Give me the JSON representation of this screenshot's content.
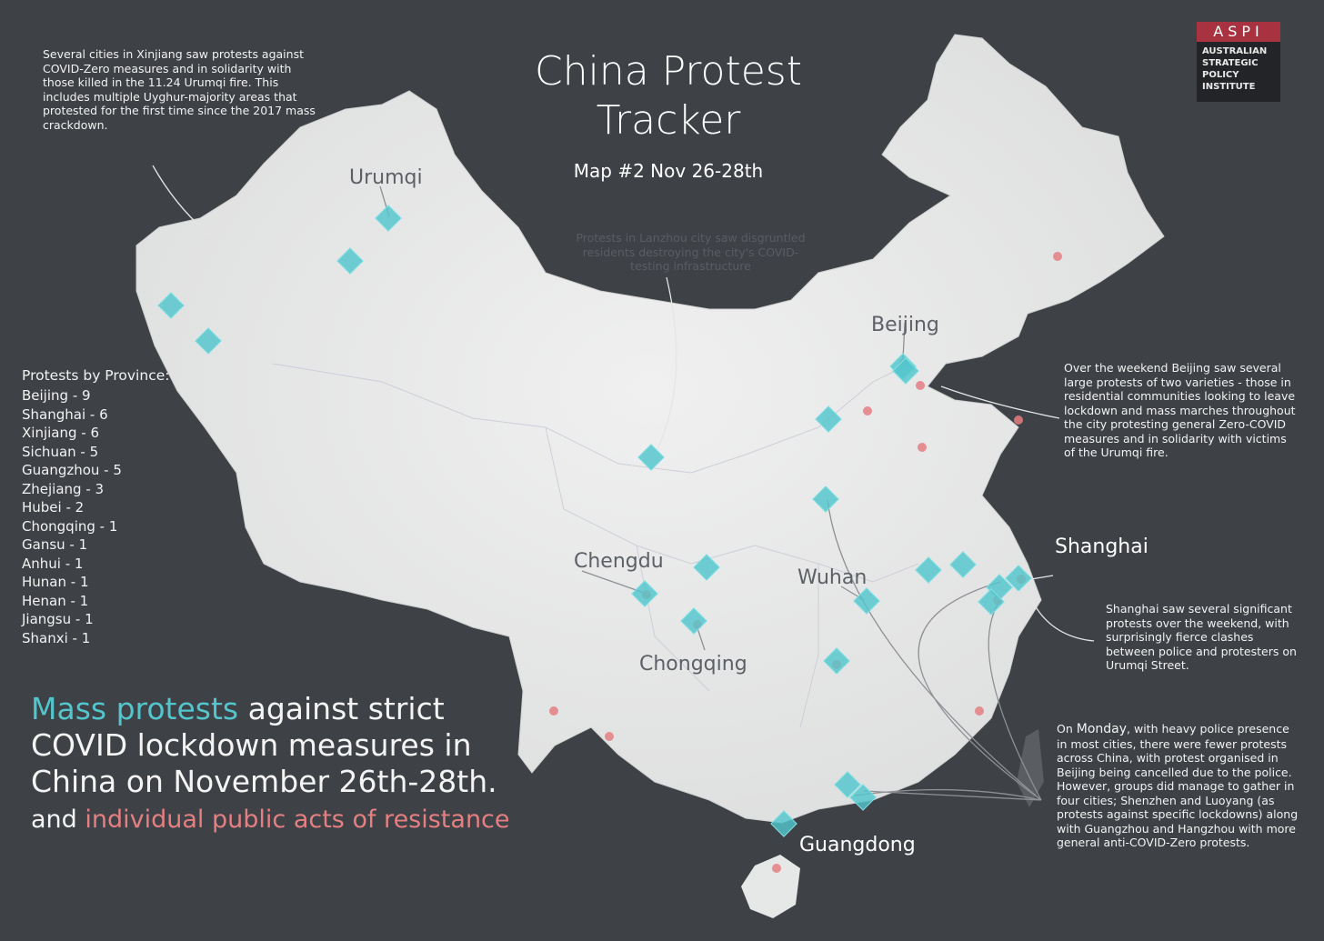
{
  "title": {
    "line1": "China Protest",
    "line2": "Tracker",
    "subtitle": "Map #2 Nov 26-28th"
  },
  "logo": {
    "acronym": "ASPI",
    "lines": [
      "AUSTRALIAN",
      "STRATEGIC",
      "POLICY",
      "INSTITUTE"
    ]
  },
  "annotations": {
    "xinjiang": "Several cities in Xinjiang saw protests against COVID-Zero measures and in solidarity with those killed in the 11.24 Urumqi fire. This includes multiple Uyghur-majority areas that protested for the first time since the 2017 mass crackdown.",
    "lanzhou": "Protests in Lanzhou city saw disgruntled residents destroying the city's COVID-testing infrastructure",
    "beijing": "Over the weekend Beijing saw several large protests of two varieties - those in residential communities looking to leave lockdown and mass marches throughout the city protesting general Zero-COVID measures and in solidarity with victims of the Urumqi fire.",
    "shanghai": "Shanghai saw several significant protests over the weekend, with surprisingly fierce clashes between police and protesters on Urumqi Street.",
    "monday_prefix": "On ",
    "monday_day": "Monday",
    "monday_rest": ", with heavy police presence in most cities, there were fewer protests across China, with protest organised in Beijing being cancelled due to the police. However, groups did manage to gather in four cities; Shenzhen and Luoyang (as protests against specific lockdowns) along with Guangzhou and Hangzhou with more general anti-COVID-Zero protests."
  },
  "cities": {
    "urumqi": "Urumqi",
    "beijing": "Beijing",
    "shanghai": "Shanghai",
    "chengdu": "Chengdu",
    "wuhan": "Wuhan",
    "chongqing": "Chongqing",
    "guangdong": "Guangdong"
  },
  "provinces": {
    "title": "Protests by Province:",
    "items": [
      "Beijing - 9",
      "Shanghai - 6",
      "Xinjiang - 6",
      "Sichuan - 5",
      "Guangzhou - 5",
      "Zhejiang - 3",
      "Hubei - 2",
      "Chongqing - 1",
      "Gansu - 1",
      "Anhui - 1",
      "Hunan - 1",
      "Henan - 1",
      "Jiangsu - 1",
      "Shanxi - 1"
    ]
  },
  "headline": {
    "highlight": "Mass protests",
    "rest": " against strict COVID lockdown measures in China on November 26th-28th.",
    "resist_prefix": "and ",
    "resist_highlight": "individual public acts of resistance"
  },
  "colors": {
    "protest_marker": "#52c6cc",
    "resistance_marker": "#e47f82",
    "land": "#e9eaea",
    "sea": "#3d4045",
    "logo_red": "#a8323f"
  },
  "markers": {
    "protest_icon": "diamond-marker-icon",
    "resistance_icon": "dot-marker-icon"
  }
}
